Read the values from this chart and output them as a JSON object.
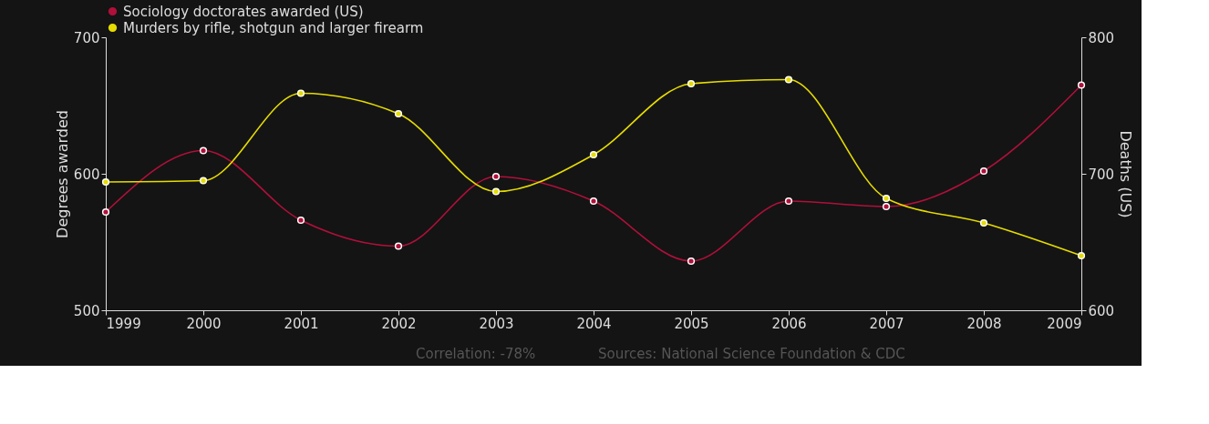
{
  "chart_data": {
    "type": "line",
    "ylabel": "Degrees awarded",
    "y2label": "Deaths (US)",
    "x": [
      1999,
      2000,
      2001,
      2002,
      2003,
      2004,
      2005,
      2006,
      2007,
      2008,
      2009
    ],
    "xlim": [
      1999,
      2009
    ],
    "xticks": [
      1999,
      2000,
      2001,
      2002,
      2003,
      2004,
      2005,
      2006,
      2007,
      2008,
      2009
    ],
    "ylim": [
      500,
      700
    ],
    "yticks": [
      500,
      600,
      700
    ],
    "y2lim": [
      600,
      800
    ],
    "y2ticks": [
      600,
      700,
      800
    ],
    "series": [
      {
        "name": "Sociology doctorates awarded (US)",
        "color": "#b0103a",
        "values": [
          572,
          617,
          566,
          547,
          598,
          580,
          536,
          580,
          576,
          602,
          665
        ]
      },
      {
        "name": "Murders by rifle, shotgun and larger firearm",
        "color": "#e6dc00",
        "axis": "y2",
        "values": [
          694,
          695,
          759,
          744,
          687,
          714,
          766,
          769,
          682,
          664,
          640
        ]
      }
    ],
    "marker": "circle",
    "grid": false,
    "legend": "top left",
    "annotations": [
      "Correlation: -78%",
      "Sources: National Science Foundation & CDC"
    ]
  }
}
